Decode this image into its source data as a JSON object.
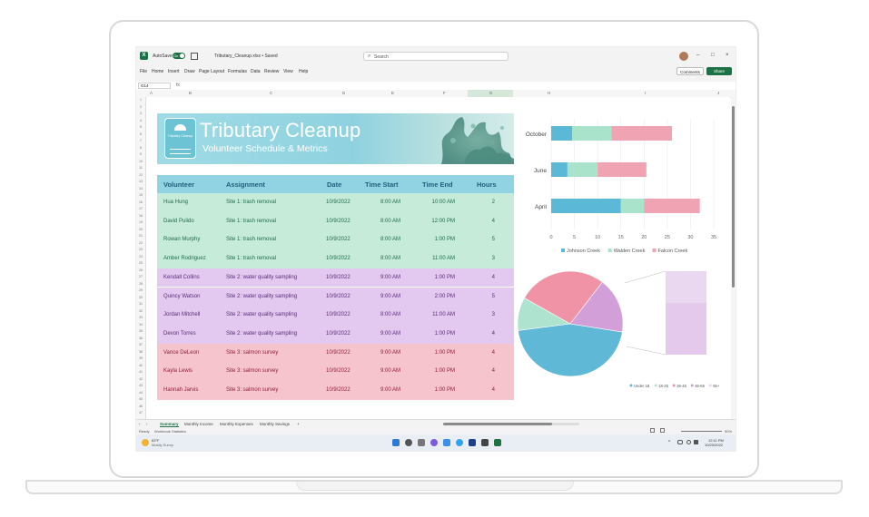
{
  "window": {
    "autosave_label": "AutoSave",
    "autosave_state": "On",
    "doc_title": "Tributary_Cleanup.xlsx • Saved",
    "search_placeholder": "Search",
    "minimize": "–",
    "restore": "□",
    "close": "×"
  },
  "menu": {
    "items": [
      "File",
      "Home",
      "Insert",
      "Draw",
      "Page Layout",
      "Formulas",
      "Data",
      "Review",
      "View",
      "Help"
    ],
    "comments": "Comments",
    "share": "Share"
  },
  "formula_bar": {
    "name_box": "G14",
    "fx": "fx"
  },
  "columns": [
    "A",
    "B",
    "C",
    "D",
    "E",
    "F",
    "G",
    "H",
    "I",
    "J"
  ],
  "banner": {
    "title": "Tributary Cleanup",
    "subtitle": "Volunteer Schedule & Metrics",
    "logo_text": "Tributary Cleanup"
  },
  "table": {
    "headers": [
      "Volunteer",
      "Assignment",
      "Date",
      "Time Start",
      "Time End",
      "Hours"
    ],
    "rows": [
      [
        "Hua Hung",
        "Site 1: trash removal",
        "10/9/2022",
        "8:00 AM",
        "10:00 AM",
        "2"
      ],
      [
        "David Pulido",
        "Site 1: trash removal",
        "10/9/2022",
        "8:00 AM",
        "12:00 PM",
        "4"
      ],
      [
        "Rowan Murphy",
        "Site 1: trash removal",
        "10/9/2022",
        "8:00 AM",
        "1:00 PM",
        "5"
      ],
      [
        "Amber Rodriguez",
        "Site 1: trash removal",
        "10/9/2022",
        "8:00 AM",
        "11:00 AM",
        "3"
      ],
      [
        "Kendall Collins",
        "Site 2: water quality sampling",
        "10/9/2022",
        "9:00 AM",
        "1:00 PM",
        "4"
      ],
      [
        "Quincy Watson",
        "Site 2: water quality sampling",
        "10/9/2022",
        "9:00 AM",
        "2:00 PM",
        "5"
      ],
      [
        "Jordan Mitchell",
        "Site 2: water quality sampling",
        "10/9/2022",
        "8:00 AM",
        "11:00 AM",
        "3"
      ],
      [
        "Devon Torres",
        "Site 2: water quality sampling",
        "10/9/2022",
        "9:00 AM",
        "1:00 PM",
        "4"
      ],
      [
        "Vance DeLeon",
        "Site 3: salmon survey",
        "10/9/2022",
        "9:00 AM",
        "1:00 PM",
        "4"
      ],
      [
        "Kayla Lewis",
        "Site 3: salmon survey",
        "10/9/2022",
        "9:00 AM",
        "1:00 PM",
        "4"
      ],
      [
        "Hannah Jarvis",
        "Site 3: salmon survey",
        "10/9/2022",
        "9:00 AM",
        "1:00 PM",
        "4"
      ]
    ],
    "group_colors": {
      "site1_bg": "#c6ebd9",
      "site1_text": "#1f6b4a",
      "site2_bg": "#e3c9ef",
      "site2_text": "#5a2a78",
      "site3_bg": "#f6c4cd",
      "site3_text": "#8e1f3a"
    }
  },
  "chart_data": [
    {
      "type": "bar",
      "orientation": "horizontal",
      "stacked": true,
      "categories": [
        "October",
        "June",
        "April"
      ],
      "series": [
        {
          "name": "Johnson Creek",
          "color": "#5bb8d6",
          "values": [
            4.5,
            3.5,
            15
          ]
        },
        {
          "name": "Walden Creek",
          "color": "#a9e3cc",
          "values": [
            8.5,
            6.5,
            5
          ]
        },
        {
          "name": "Falcon Creek",
          "color": "#f0a3b3",
          "values": [
            13,
            10.5,
            12
          ]
        }
      ],
      "x_ticks": [
        "0",
        "5",
        "10",
        "15",
        "20",
        "25",
        "30",
        "35"
      ],
      "xlim": [
        0,
        35
      ],
      "legend": "bottom",
      "grid": true
    },
    {
      "type": "pie",
      "slices": [
        {
          "name": "Under 18",
          "value": 40,
          "color": "#5fb8d5"
        },
        {
          "name": "18-25",
          "value": 9,
          "color": "#aee3cf"
        },
        {
          "name": "26-45",
          "value": 24,
          "color": "#f193a6"
        },
        {
          "name": "46-65",
          "value": 15,
          "color": "#d39fd8"
        },
        {
          "name": "65+",
          "value": 12,
          "color": "#e8d2ee"
        }
      ],
      "legend": "bottom"
    }
  ],
  "sheets": {
    "tabs": [
      "Summary",
      "Monthly Income",
      "Monthly Expenses",
      "Monthly Savings"
    ],
    "add": "+"
  },
  "status": {
    "ready": "Ready",
    "stats": "Workbook Statistics",
    "zoom": "90%"
  },
  "taskbar": {
    "weather_temp": "63°F",
    "weather_desc": "Mostly Sunny",
    "time": "12:11 PM",
    "date": "10/20/2022"
  }
}
